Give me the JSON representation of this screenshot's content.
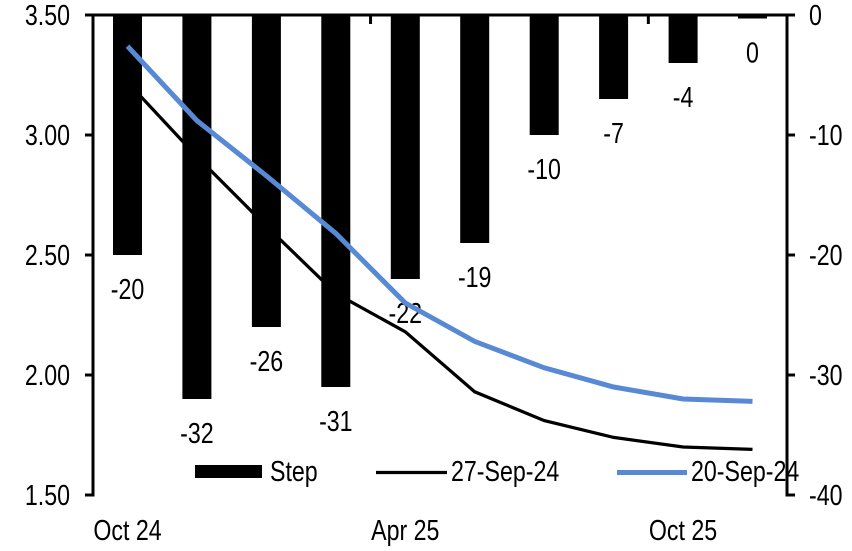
{
  "chart_data": {
    "type": "combo-bar-line",
    "title": "",
    "grid": "off",
    "background": "#FFFFFF",
    "categories": [
      "Oct 24",
      "",
      "",
      "",
      "Apr 25",
      "",
      "",
      "",
      "Oct 25",
      ""
    ],
    "bar_series": {
      "name": "Step",
      "yaxis": "right",
      "color": "#000000",
      "values": [
        -20,
        -32,
        -26,
        -31,
        -22,
        -19,
        -10,
        -7,
        -4,
        0
      ],
      "data_labels": [
        "-20",
        "-32",
        "-26",
        "-31",
        "-22",
        "-19",
        "-10",
        "-7",
        "-4",
        "0"
      ]
    },
    "line_series": [
      {
        "name": "27-Sep-24",
        "yaxis": "left",
        "color": "#000000",
        "stroke_width": 3.25,
        "values": [
          3.22,
          2.91,
          2.62,
          2.34,
          2.18,
          1.93,
          1.81,
          1.74,
          1.7,
          1.69
        ]
      },
      {
        "name": "20-Sep-24",
        "yaxis": "left",
        "color": "#5789D4",
        "stroke_width": 5,
        "values": [
          3.37,
          3.06,
          2.83,
          2.59,
          2.3,
          2.14,
          2.03,
          1.95,
          1.9,
          1.89
        ]
      }
    ],
    "left_axis": {
      "min": 1.5,
      "max": 3.5,
      "tick_step": 0.5,
      "tick_labels": [
        "3.50",
        "3.00",
        "2.50",
        "2.00",
        "1.50"
      ]
    },
    "right_axis": {
      "min": -40,
      "max": 0,
      "tick_step": 10,
      "tick_labels": [
        "0",
        "-10",
        "-20",
        "-30",
        "-40"
      ]
    },
    "x_axis": {
      "visible_labels": [
        {
          "label": "Oct 24",
          "category_index": 0
        },
        {
          "label": "Apr 25",
          "category_index": 4
        },
        {
          "label": "Oct 25",
          "category_index": 8
        }
      ],
      "boundary_ticks_between": [
        3,
        7
      ]
    },
    "legend": {
      "position": "bottom-inside",
      "items": [
        {
          "label": "Step",
          "swatch": "bar",
          "color": "#000000"
        },
        {
          "label": "27-Sep-24",
          "swatch": "line",
          "color": "#000000",
          "stroke_width": 3.25
        },
        {
          "label": "20-Sep-24",
          "swatch": "line",
          "color": "#5789D4",
          "stroke_width": 5
        }
      ]
    }
  }
}
